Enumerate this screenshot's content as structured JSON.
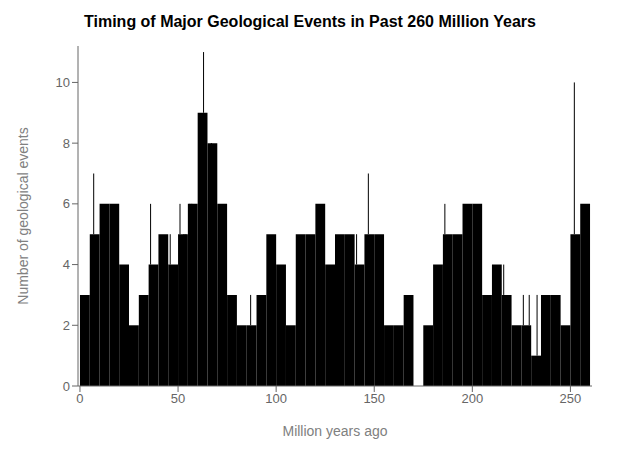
{
  "chart_data": {
    "type": "histogram",
    "title": "Timing of Major Geological Events in Past 260 Million Years",
    "xlabel": "Million years ago",
    "ylabel": "Number of geological events",
    "color": "#000000",
    "grid": false,
    "xlim": [
      -1,
      261
    ],
    "ylim": [
      0,
      11.2
    ],
    "xticks": [
      0,
      50,
      100,
      150,
      200,
      250
    ],
    "yticks": [
      0,
      2,
      4,
      6,
      8,
      10
    ],
    "bins": [
      0,
      5,
      10,
      15,
      20,
      25,
      30,
      35,
      40,
      45,
      50,
      55,
      60,
      65,
      70,
      75,
      80,
      85,
      90,
      95,
      100,
      105,
      110,
      115,
      120,
      125,
      130,
      135,
      140,
      145,
      150,
      155,
      160,
      165,
      170,
      175,
      180,
      185,
      190,
      195,
      200,
      205,
      210,
      215,
      220,
      225,
      230,
      235,
      240,
      245,
      250,
      255,
      260
    ],
    "values": [
      3,
      5,
      6,
      6,
      4,
      2,
      3,
      4,
      5,
      4,
      5,
      6,
      9,
      8,
      6,
      3,
      2,
      2,
      3,
      5,
      4,
      2,
      5,
      5,
      6,
      4,
      5,
      5,
      4,
      5,
      5,
      2,
      2,
      3,
      0,
      2,
      4,
      5,
      5,
      6,
      6,
      3,
      4,
      3,
      2,
      2,
      1,
      3,
      3,
      2,
      5,
      6
    ],
    "spikes": {
      "x": [
        7,
        11,
        13,
        36,
        46,
        51,
        53,
        54,
        56,
        57,
        63,
        67,
        72,
        87,
        108,
        121,
        141,
        147,
        186,
        196,
        199,
        216,
        226,
        229,
        233,
        252,
        256
      ],
      "low": [
        5,
        6,
        6,
        4,
        4,
        5,
        5,
        5,
        6,
        6,
        9,
        8,
        6,
        2,
        2,
        6,
        4,
        5,
        5,
        6,
        6,
        3,
        2,
        2,
        1,
        5,
        6
      ],
      "high": [
        7,
        6,
        6,
        6,
        5,
        6,
        3,
        3,
        3,
        3,
        11,
        7,
        6,
        3,
        2,
        6,
        5,
        7,
        6,
        6,
        6,
        4,
        3,
        3,
        3,
        10,
        6
      ]
    }
  }
}
